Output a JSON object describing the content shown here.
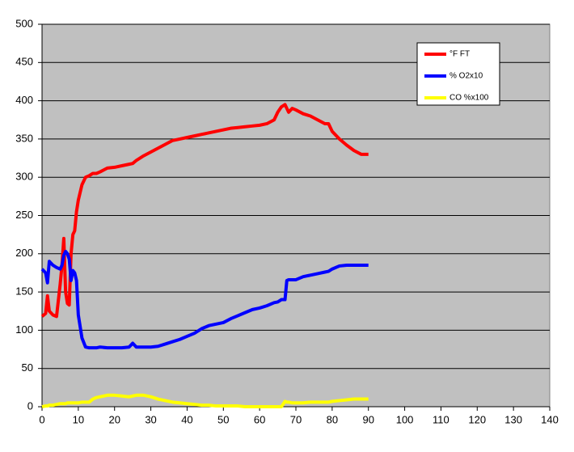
{
  "chart_data": {
    "type": "line",
    "x": [
      0,
      1,
      1.5,
      2,
      3,
      4,
      5,
      5.5,
      6,
      6.5,
      7,
      7.5,
      8,
      8.5,
      9,
      9.5,
      10,
      11,
      12,
      13,
      14,
      15,
      16,
      18,
      20,
      22,
      24,
      25,
      26,
      28,
      30,
      32,
      34,
      36,
      38,
      40,
      42,
      44,
      46,
      48,
      50,
      52,
      54,
      56,
      58,
      60,
      62,
      64,
      65,
      66,
      67,
      67.5,
      68,
      69,
      70,
      72,
      74,
      76,
      78,
      79,
      80,
      82,
      84,
      86,
      88,
      90
    ],
    "series": [
      {
        "name": "°F FT",
        "color": "#ff0000",
        "values": [
          118,
          122,
          145,
          125,
          120,
          118,
          160,
          185,
          220,
          150,
          135,
          133,
          200,
          225,
          230,
          255,
          270,
          290,
          300,
          302,
          305,
          305,
          307,
          312,
          313,
          315,
          317,
          318,
          322,
          328,
          333,
          338,
          343,
          348,
          350,
          352,
          354,
          356,
          358,
          360,
          362,
          364,
          365,
          366,
          367,
          368,
          370,
          375,
          385,
          392,
          395,
          390,
          385,
          390,
          388,
          383,
          380,
          375,
          370,
          370,
          360,
          350,
          342,
          335,
          330,
          330
        ]
      },
      {
        "name": "% O2x10",
        "color": "#0000ff",
        "values": [
          180,
          175,
          162,
          190,
          185,
          182,
          180,
          185,
          198,
          203,
          200,
          193,
          165,
          178,
          175,
          165,
          120,
          90,
          78,
          77,
          77,
          77,
          78,
          77,
          77,
          77,
          78,
          83,
          78,
          78,
          78,
          79,
          82,
          85,
          88,
          92,
          96,
          102,
          106,
          108,
          110,
          115,
          119,
          123,
          127,
          129,
          132,
          136,
          137,
          140,
          140,
          165,
          166,
          166,
          166,
          170,
          172,
          174,
          176,
          177,
          180,
          184,
          185,
          185,
          185,
          185
        ]
      },
      {
        "name": "CO %x100",
        "color": "#ffff00",
        "values": [
          0,
          1,
          1,
          2,
          2,
          3,
          4,
          4,
          4,
          4,
          5,
          5,
          5,
          5,
          5,
          5,
          5,
          6,
          6,
          6,
          10,
          12,
          13,
          15,
          15,
          14,
          13,
          14,
          15,
          15,
          13,
          10,
          8,
          6,
          5,
          4,
          3,
          2,
          2,
          1,
          1,
          1,
          1,
          0,
          0,
          0,
          0,
          0,
          0,
          0,
          7,
          6,
          6,
          5,
          5,
          5,
          6,
          6,
          6,
          6,
          7,
          8,
          9,
          10,
          10,
          10
        ]
      }
    ],
    "xlim": [
      0,
      140
    ],
    "xticks": [
      0,
      10,
      20,
      30,
      40,
      50,
      60,
      70,
      80,
      90,
      100,
      110,
      120,
      130,
      140
    ],
    "ylim": [
      0,
      500
    ],
    "yticks": [
      0,
      50,
      100,
      150,
      200,
      250,
      300,
      350,
      400,
      450,
      500
    ],
    "grid": true,
    "legend": "upper right",
    "plot_background": "#c0c0c0"
  }
}
